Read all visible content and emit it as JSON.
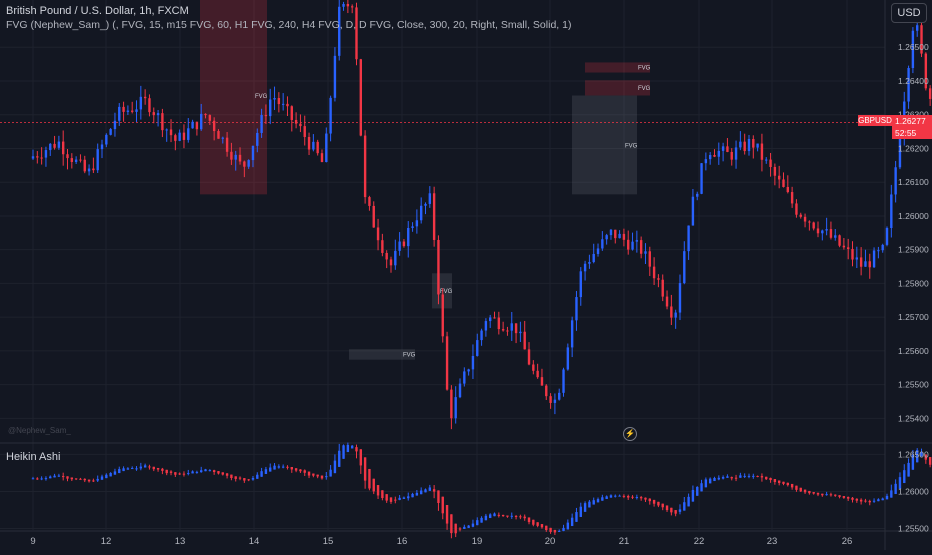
{
  "header": {
    "title": "British Pound / U.S. Dollar, 1h, FXCM",
    "indicator": "FVG (Nephew_Sam_) (, FVG, 15, m15 FVG, 60, H1 FVG, 240, H4 FVG, D, D FVG, Close, 300, 20, Right, Small, Solid, 1)"
  },
  "currency_button": "USD",
  "lower_pane_title": "Heikin Ashi",
  "watermark": "@Nephew_Sam_",
  "price_tag": {
    "symbol": "GBPUSD",
    "price": "1.26277",
    "countdown": "52:55"
  },
  "colors": {
    "up": "#2962ff",
    "down": "#f23645",
    "background": "#131722",
    "grid": "#1e222d"
  },
  "chart_data": [
    {
      "type": "candlestick",
      "title": "British Pound / U.S. Dollar, 1h, FXCM",
      "y_ticks": [
        "1.26500",
        "1.26400",
        "1.26300",
        "1.26200",
        "1.26100",
        "1.26000",
        "1.25900",
        "1.25800",
        "1.25700",
        "1.25600",
        "1.25500",
        "1.25400"
      ],
      "x_ticks": [
        "9",
        "12",
        "13",
        "14",
        "15",
        "16",
        "19",
        "20",
        "21",
        "22",
        "23",
        "26"
      ],
      "ylim": [
        1.2533,
        1.2664
      ],
      "last_price": 1.26277,
      "fvg_zones": [
        {
          "label": "FVG",
          "color": "red",
          "x_from": "13",
          "x_to": "14",
          "y_from": 1.26064,
          "y_to": 1.2664
        },
        {
          "label": "FVG",
          "color": "gray",
          "x_from": "15",
          "x_to": "16",
          "y_from": 1.25574,
          "y_to": 1.25605
        },
        {
          "label": "FVG",
          "color": "gray",
          "x_from": "16",
          "x_to": "19",
          "y_from": 1.25726,
          "y_to": 1.2583
        },
        {
          "label": "FVG",
          "color": "red",
          "x_from": "20",
          "x_to": "21",
          "y_from": 1.26425,
          "y_to": 1.26455
        },
        {
          "label": "FVG",
          "color": "red",
          "x_from": "20",
          "x_to": "21",
          "y_from": 1.26357,
          "y_to": 1.26402
        },
        {
          "label": "FVG",
          "color": "gray",
          "x_from": "20",
          "x_to": "21",
          "y_from": 1.26064,
          "y_to": 1.26357
        }
      ],
      "path_anchors": [
        [
          9,
          1.2617
        ],
        [
          9.4,
          1.2622
        ],
        [
          9.8,
          1.2612
        ],
        [
          10.2,
          1.263
        ],
        [
          10.6,
          1.2634
        ],
        [
          11,
          1.2622
        ],
        [
          11.4,
          1.263
        ],
        [
          11.9,
          1.2614
        ],
        [
          12.3,
          1.2636
        ],
        [
          12.7,
          1.2625
        ],
        [
          13,
          1.2615
        ],
        [
          13.2,
          1.266
        ],
        [
          13.4,
          1.2664
        ],
        [
          13.55,
          1.2605
        ],
        [
          13.9,
          1.2585
        ],
        [
          14.25,
          1.26
        ],
        [
          14.45,
          1.2605
        ],
        [
          14.7,
          1.254
        ],
        [
          15.2,
          1.257
        ],
        [
          15.6,
          1.2567
        ],
        [
          15.9,
          1.255
        ],
        [
          16.15,
          1.2545
        ],
        [
          16.5,
          1.2585
        ],
        [
          16.9,
          1.2595
        ],
        [
          17.3,
          1.259
        ],
        [
          17.55,
          1.258
        ],
        [
          17.75,
          1.257
        ],
        [
          17.95,
          1.26
        ],
        [
          18.2,
          1.262
        ],
        [
          18.5,
          1.2618
        ],
        [
          18.8,
          1.2622
        ],
        [
          19.1,
          1.2612
        ],
        [
          19.4,
          1.2602
        ],
        [
          19.9,
          1.2593
        ],
        [
          20.3,
          1.2585
        ],
        [
          20.6,
          1.259
        ],
        [
          20.75,
          1.2615
        ],
        [
          21.0,
          1.266
        ],
        [
          21.15,
          1.264
        ],
        [
          21.35,
          1.2625
        ],
        [
          21.6,
          1.2622
        ],
        [
          21.8,
          1.2635
        ],
        [
          21.95,
          1.262
        ],
        [
          22.15,
          1.2628
        ]
      ]
    },
    {
      "type": "heikin_ashi",
      "title": "Heikin Ashi",
      "y_ticks": [
        "1.26500",
        "1.26000",
        "1.25500"
      ],
      "ylim": [
        1.2548,
        1.2664
      ]
    }
  ]
}
